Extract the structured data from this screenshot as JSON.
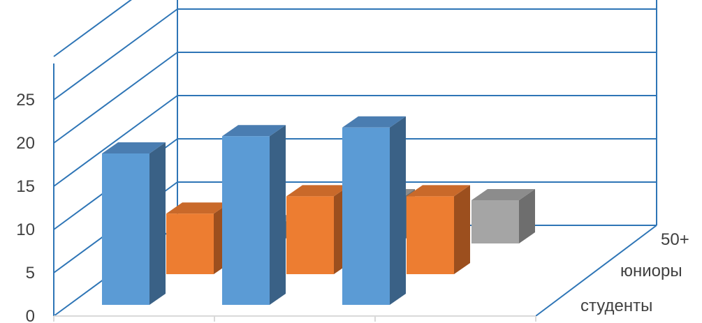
{
  "chart_data": {
    "type": "bar",
    "title": "",
    "xlabel": "",
    "ylabel": "",
    "categories": [
      "",
      "",
      ""
    ],
    "ylim": [
      0,
      30
    ],
    "y_ticks": [
      0,
      5,
      10,
      15,
      20,
      25
    ],
    "grid": true,
    "three_d": true,
    "series": [
      {
        "name": "студенты",
        "values": [
          17.5,
          19.5,
          20.5
        ]
      },
      {
        "name": "юниоры",
        "values": [
          7,
          9,
          9
        ]
      },
      {
        "name": "50+",
        "values": [
          2,
          5,
          5
        ]
      }
    ]
  },
  "colors": {
    "grid": "#2E75B6",
    "tick_text": "#404040",
    "series_front": [
      "#5B9BD5",
      "#ED7D31",
      "#A5A5A5"
    ],
    "series_top": [
      "#4A7DB1",
      "#C9692A",
      "#8C8C8C"
    ],
    "series_side": [
      "#3A6186",
      "#9C4F1E",
      "#6E6E6E"
    ]
  }
}
